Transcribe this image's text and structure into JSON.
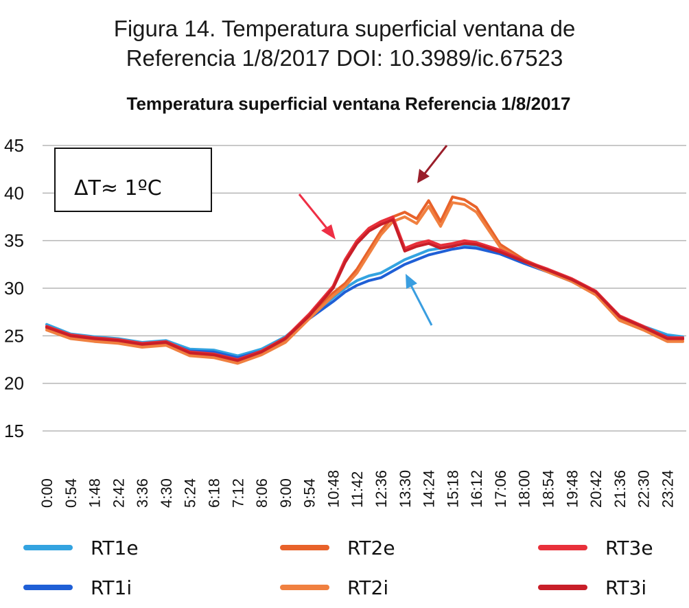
{
  "caption": {
    "line1": "Figura 14. Temperatura superficial ventana de",
    "line2": "Referencia 1/8/2017 DOI: 10.3989/ic.67523"
  },
  "chart_data": {
    "type": "line",
    "title": "Temperatura superficial ventana Referencia 1/8/2017",
    "xlabel": "",
    "ylabel": "",
    "ylim": [
      15,
      45
    ],
    "yticks": [
      45,
      40,
      35,
      30,
      25,
      20,
      15
    ],
    "x_tick_labels": [
      "0:00",
      "0:54",
      "1:48",
      "2:42",
      "3:36",
      "4:30",
      "5:24",
      "6:18",
      "7:12",
      "8:06",
      "9:00",
      "9:54",
      "10:48",
      "11:42",
      "12:36",
      "13:30",
      "14:24",
      "15:18",
      "16:12",
      "17:06",
      "18:00",
      "18:54",
      "19:48",
      "20:42",
      "21:36",
      "22:30",
      "23:24"
    ],
    "grid": true,
    "legend_position": "bottom",
    "annotation": "ΔT≈ 1ºC",
    "x": [
      "0:00",
      "0:54",
      "1:48",
      "2:42",
      "3:36",
      "4:30",
      "5:24",
      "6:18",
      "7:12",
      "8:06",
      "9:00",
      "9:54",
      "10:48",
      "11:15",
      "11:42",
      "12:09",
      "12:36",
      "13:03",
      "13:30",
      "13:57",
      "14:24",
      "14:51",
      "15:18",
      "15:45",
      "16:12",
      "17:06",
      "18:00",
      "18:54",
      "19:48",
      "20:42",
      "21:36",
      "22:30",
      "23:24",
      "23:59"
    ],
    "series": [
      {
        "name": "RT1e",
        "color": "#33a3e0",
        "values": [
          26.2,
          25.2,
          24.9,
          24.7,
          24.3,
          24.5,
          23.6,
          23.5,
          22.9,
          23.6,
          24.9,
          27.0,
          29.0,
          30.0,
          30.8,
          31.3,
          31.6,
          32.3,
          33.0,
          33.5,
          34.0,
          34.2,
          34.5,
          34.6,
          34.5,
          33.8,
          32.8,
          31.9,
          30.9,
          29.6,
          27.0,
          26.0,
          25.1,
          24.9
        ]
      },
      {
        "name": "RT1i",
        "color": "#1f5fd6",
        "values": [
          26.0,
          25.0,
          24.7,
          24.5,
          24.1,
          24.3,
          23.4,
          23.3,
          22.7,
          23.4,
          24.7,
          26.8,
          28.6,
          29.6,
          30.3,
          30.8,
          31.1,
          31.8,
          32.5,
          33.0,
          33.5,
          33.8,
          34.1,
          34.3,
          34.2,
          33.6,
          32.6,
          31.7,
          30.7,
          29.4,
          26.8,
          25.8,
          24.9,
          24.7
        ]
      },
      {
        "name": "RT2e",
        "color": "#e8622a",
        "values": [
          25.8,
          24.9,
          24.6,
          24.4,
          24.0,
          24.2,
          23.1,
          22.9,
          22.3,
          23.2,
          24.5,
          27.0,
          29.5,
          30.5,
          32.0,
          34.0,
          36.0,
          37.5,
          38.0,
          37.3,
          39.2,
          37.0,
          39.6,
          39.3,
          38.5,
          34.6,
          33.0,
          31.9,
          30.9,
          29.5,
          26.8,
          25.8,
          24.6,
          24.6
        ]
      },
      {
        "name": "RT2i",
        "color": "#f08040",
        "values": [
          25.6,
          24.7,
          24.4,
          24.2,
          23.8,
          24.0,
          22.9,
          22.7,
          22.1,
          23.0,
          24.3,
          26.8,
          29.2,
          30.2,
          31.6,
          33.6,
          35.6,
          37.0,
          37.5,
          36.8,
          38.6,
          36.5,
          39.0,
          38.8,
          38.0,
          34.3,
          32.8,
          31.7,
          30.7,
          29.3,
          26.6,
          25.6,
          24.4,
          24.4
        ]
      },
      {
        "name": "RT3e",
        "color": "#e8303a",
        "values": [
          26.0,
          25.1,
          24.8,
          24.6,
          24.2,
          24.4,
          23.3,
          23.1,
          22.5,
          23.4,
          24.8,
          27.3,
          30.2,
          33.0,
          35.0,
          36.3,
          37.0,
          37.5,
          34.2,
          34.7,
          35.0,
          34.5,
          34.7,
          35.0,
          34.8,
          34.0,
          32.9,
          32.0,
          31.0,
          29.7,
          27.1,
          26.0,
          24.8,
          24.8
        ]
      },
      {
        "name": "RT3i",
        "color": "#c81e28",
        "values": [
          25.9,
          25.0,
          24.7,
          24.5,
          24.1,
          24.3,
          23.2,
          23.0,
          22.4,
          23.3,
          24.7,
          27.1,
          30.0,
          32.7,
          34.7,
          36.0,
          36.7,
          37.2,
          33.9,
          34.4,
          34.7,
          34.2,
          34.4,
          34.7,
          34.6,
          33.8,
          32.8,
          31.9,
          30.9,
          29.6,
          27.0,
          25.9,
          24.7,
          24.7
        ]
      }
    ]
  }
}
